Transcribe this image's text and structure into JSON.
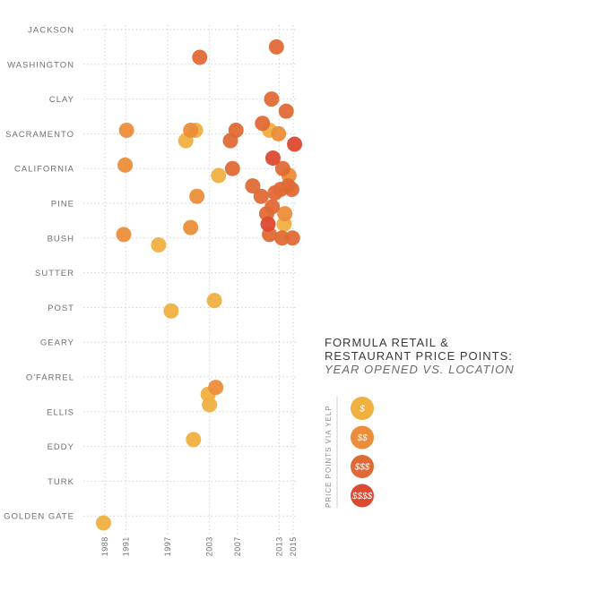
{
  "chart_data": {
    "type": "scatter",
    "title": "FORMULA RETAIL &",
    "title_line2": "RESTAURANT PRICE POINTS:",
    "subtitle": "YEAR OPENED VS. LOCATION",
    "xlabel": "",
    "ylabel": "",
    "x_ticks": [
      1988,
      1991,
      1997,
      2003,
      2007,
      2013,
      2015
    ],
    "xlim": [
      1985,
      2015.5
    ],
    "y_categories": [
      "JACKSON",
      "WASHINGTON",
      "CLAY",
      "SACRAMENTO",
      "CALIFORNIA",
      "PINE",
      "BUSH",
      "SUTTER",
      "POST",
      "GEARY",
      "O'FARREL",
      "ELLIS",
      "EDDY",
      "TURK",
      "GOLDEN GATE"
    ],
    "grid": true,
    "legend": {
      "title": "PRICE POINTS VIA YELP",
      "placement": "right",
      "items": [
        {
          "label": "$",
          "color": "#f0b040"
        },
        {
          "label": "$$",
          "color": "#eb8d3a"
        },
        {
          "label": "$$$",
          "color": "#e06a35"
        },
        {
          "label": "$$$$",
          "color": "#dc4a32"
        }
      ]
    },
    "series": [
      {
        "name": "$",
        "color": "#f0b040",
        "points": [
          {
            "x": 1987.8,
            "y": 14.2
          },
          {
            "x": 1995.7,
            "y": 6.2
          },
          {
            "x": 1997.5,
            "y": 8.1
          },
          {
            "x": 1999.6,
            "y": 3.2
          },
          {
            "x": 2001.0,
            "y": 2.9
          },
          {
            "x": 2002.8,
            "y": 10.5
          },
          {
            "x": 2003.0,
            "y": 10.8
          },
          {
            "x": 2003.7,
            "y": 7.8
          },
          {
            "x": 2004.3,
            "y": 4.2
          },
          {
            "x": 2011.6,
            "y": 2.9
          },
          {
            "x": 2013.7,
            "y": 5.6
          },
          {
            "x": 2000.7,
            "y": 11.8
          }
        ]
      },
      {
        "name": "$$",
        "color": "#eb8d3a",
        "points": [
          {
            "x": 1991.1,
            "y": 2.9
          },
          {
            "x": 1990.9,
            "y": 3.9
          },
          {
            "x": 1990.7,
            "y": 5.9
          },
          {
            "x": 2000.3,
            "y": 2.9
          },
          {
            "x": 2001.2,
            "y": 4.8
          },
          {
            "x": 2000.3,
            "y": 5.7
          },
          {
            "x": 2003.9,
            "y": 10.3
          },
          {
            "x": 2012.9,
            "y": 3.0
          },
          {
            "x": 2013.8,
            "y": 5.3
          },
          {
            "x": 2014.4,
            "y": 4.2
          }
        ]
      },
      {
        "name": "$$$",
        "color": "#e06a35",
        "points": [
          {
            "x": 2001.6,
            "y": 0.8
          },
          {
            "x": 2012.6,
            "y": 0.5
          },
          {
            "x": 2011.9,
            "y": 2.0
          },
          {
            "x": 2014.0,
            "y": 2.35
          },
          {
            "x": 2010.6,
            "y": 2.7
          },
          {
            "x": 2006.8,
            "y": 2.9
          },
          {
            "x": 2006.0,
            "y": 3.2
          },
          {
            "x": 2006.3,
            "y": 4.0
          },
          {
            "x": 2013.5,
            "y": 4.0
          },
          {
            "x": 2014.3,
            "y": 4.5
          },
          {
            "x": 2013.2,
            "y": 4.6
          },
          {
            "x": 2009.2,
            "y": 4.5
          },
          {
            "x": 2010.4,
            "y": 4.8
          },
          {
            "x": 2012.4,
            "y": 4.7
          },
          {
            "x": 2014.8,
            "y": 4.6
          },
          {
            "x": 2012.0,
            "y": 5.1
          },
          {
            "x": 2011.2,
            "y": 5.3
          },
          {
            "x": 2013.4,
            "y": 6.0
          },
          {
            "x": 2014.9,
            "y": 6.0
          },
          {
            "x": 2011.6,
            "y": 5.9
          }
        ]
      },
      {
        "name": "$$$$",
        "color": "#dc4a32",
        "points": [
          {
            "x": 2015.2,
            "y": 3.3
          },
          {
            "x": 2012.1,
            "y": 3.7
          },
          {
            "x": 2011.4,
            "y": 5.6
          }
        ]
      }
    ]
  }
}
